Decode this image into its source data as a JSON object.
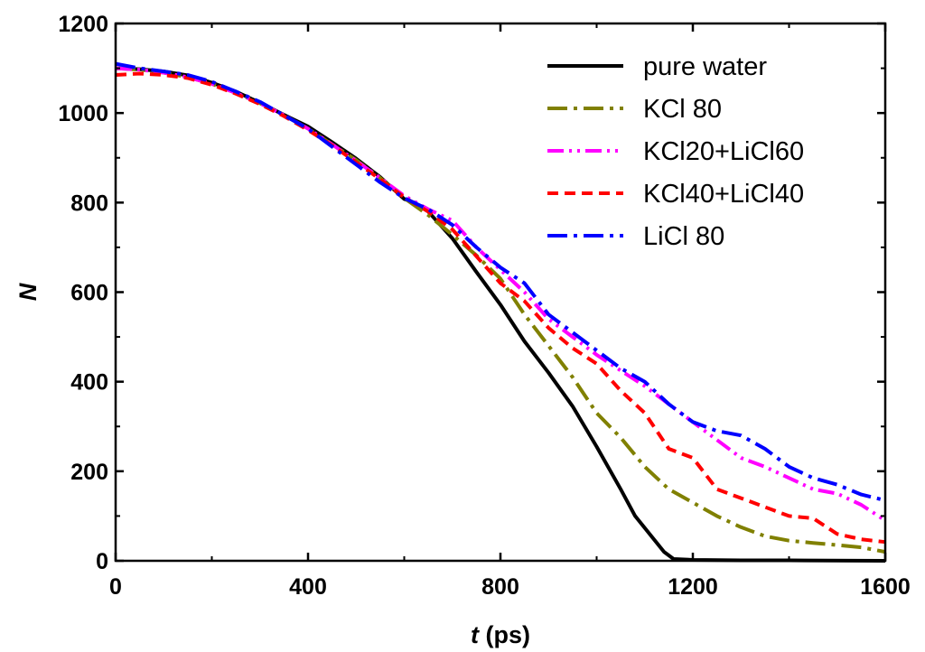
{
  "chart_data": {
    "type": "line",
    "title": "",
    "xlabel_italic": "t",
    "xlabel_unit": " (ps)",
    "ylabel": "N",
    "xlim": [
      0,
      1600
    ],
    "ylim": [
      0,
      1200
    ],
    "xticks": [
      0,
      400,
      800,
      1200,
      1600
    ],
    "yticks": [
      0,
      200,
      400,
      600,
      800,
      1000,
      1200
    ],
    "x_tick_labels": [
      "0",
      "400",
      "800",
      "1200",
      "1600"
    ],
    "y_tick_labels": [
      "0",
      "200",
      "400",
      "600",
      "800",
      "1000",
      "1200"
    ],
    "legend_position": "top-right",
    "series": [
      {
        "name": "pure  water",
        "color": "#000000",
        "dash": "solid",
        "points": [
          [
            0,
            1100
          ],
          [
            50,
            1098
          ],
          [
            100,
            1093
          ],
          [
            150,
            1084
          ],
          [
            200,
            1068
          ],
          [
            250,
            1048
          ],
          [
            300,
            1023
          ],
          [
            350,
            996
          ],
          [
            400,
            970
          ],
          [
            450,
            935
          ],
          [
            500,
            898
          ],
          [
            550,
            857
          ],
          [
            600,
            808
          ],
          [
            620,
            800
          ],
          [
            650,
            780
          ],
          [
            700,
            720
          ],
          [
            750,
            645
          ],
          [
            800,
            572
          ],
          [
            850,
            490
          ],
          [
            900,
            420
          ],
          [
            950,
            345
          ],
          [
            1000,
            255
          ],
          [
            1050,
            160
          ],
          [
            1080,
            100
          ],
          [
            1110,
            60
          ],
          [
            1140,
            20
          ],
          [
            1160,
            4
          ],
          [
            1200,
            2
          ],
          [
            1300,
            1
          ],
          [
            1400,
            1
          ],
          [
            1600,
            0
          ]
        ]
      },
      {
        "name": "KCl  80",
        "color": "#808000",
        "dash": "dashdot",
        "points": [
          [
            0,
            1100
          ],
          [
            50,
            1097
          ],
          [
            100,
            1090
          ],
          [
            150,
            1080
          ],
          [
            200,
            1065
          ],
          [
            250,
            1045
          ],
          [
            300,
            1022
          ],
          [
            350,
            995
          ],
          [
            400,
            965
          ],
          [
            450,
            930
          ],
          [
            500,
            895
          ],
          [
            550,
            855
          ],
          [
            600,
            810
          ],
          [
            650,
            772
          ],
          [
            700,
            728
          ],
          [
            750,
            682
          ],
          [
            800,
            630
          ],
          [
            850,
            550
          ],
          [
            900,
            480
          ],
          [
            950,
            410
          ],
          [
            1000,
            330
          ],
          [
            1050,
            275
          ],
          [
            1100,
            210
          ],
          [
            1150,
            160
          ],
          [
            1200,
            130
          ],
          [
            1250,
            100
          ],
          [
            1300,
            75
          ],
          [
            1350,
            55
          ],
          [
            1400,
            45
          ],
          [
            1450,
            40
          ],
          [
            1500,
            35
          ],
          [
            1550,
            30
          ],
          [
            1600,
            20
          ]
        ]
      },
      {
        "name": "KCl20+LiCl60",
        "color": "#ff00ff",
        "dash": "dashdotdot",
        "points": [
          [
            0,
            1100
          ],
          [
            50,
            1097
          ],
          [
            100,
            1090
          ],
          [
            150,
            1080
          ],
          [
            200,
            1065
          ],
          [
            250,
            1045
          ],
          [
            300,
            1022
          ],
          [
            350,
            995
          ],
          [
            400,
            965
          ],
          [
            450,
            930
          ],
          [
            500,
            893
          ],
          [
            550,
            855
          ],
          [
            600,
            815
          ],
          [
            650,
            785
          ],
          [
            700,
            760
          ],
          [
            750,
            700
          ],
          [
            800,
            650
          ],
          [
            850,
            600
          ],
          [
            900,
            540
          ],
          [
            950,
            500
          ],
          [
            1000,
            460
          ],
          [
            1050,
            425
          ],
          [
            1100,
            390
          ],
          [
            1150,
            350
          ],
          [
            1200,
            310
          ],
          [
            1250,
            270
          ],
          [
            1300,
            230
          ],
          [
            1350,
            210
          ],
          [
            1400,
            185
          ],
          [
            1450,
            160
          ],
          [
            1500,
            150
          ],
          [
            1550,
            125
          ],
          [
            1600,
            90
          ]
        ]
      },
      {
        "name": "KCl40+LiCl40",
        "color": "#ff0000",
        "dash": "dash",
        "points": [
          [
            0,
            1085
          ],
          [
            50,
            1088
          ],
          [
            100,
            1085
          ],
          [
            150,
            1078
          ],
          [
            200,
            1063
          ],
          [
            250,
            1043
          ],
          [
            300,
            1020
          ],
          [
            350,
            993
          ],
          [
            400,
            962
          ],
          [
            450,
            928
          ],
          [
            500,
            890
          ],
          [
            550,
            852
          ],
          [
            600,
            812
          ],
          [
            650,
            780
          ],
          [
            700,
            740
          ],
          [
            750,
            680
          ],
          [
            800,
            620
          ],
          [
            850,
            580
          ],
          [
            900,
            520
          ],
          [
            950,
            475
          ],
          [
            1000,
            440
          ],
          [
            1050,
            380
          ],
          [
            1100,
            330
          ],
          [
            1150,
            250
          ],
          [
            1200,
            230
          ],
          [
            1250,
            160
          ],
          [
            1300,
            140
          ],
          [
            1350,
            120
          ],
          [
            1400,
            100
          ],
          [
            1450,
            95
          ],
          [
            1500,
            60
          ],
          [
            1550,
            48
          ],
          [
            1600,
            42
          ]
        ]
      },
      {
        "name": "LiCl  80",
        "color": "#0000ff",
        "dash": "dashdot",
        "points": [
          [
            0,
            1110
          ],
          [
            50,
            1100
          ],
          [
            100,
            1093
          ],
          [
            150,
            1085
          ],
          [
            200,
            1070
          ],
          [
            250,
            1048
          ],
          [
            300,
            1025
          ],
          [
            350,
            995
          ],
          [
            400,
            965
          ],
          [
            450,
            925
          ],
          [
            500,
            885
          ],
          [
            550,
            845
          ],
          [
            600,
            810
          ],
          [
            650,
            785
          ],
          [
            700,
            750
          ],
          [
            750,
            700
          ],
          [
            800,
            655
          ],
          [
            850,
            620
          ],
          [
            900,
            550
          ],
          [
            950,
            510
          ],
          [
            1000,
            470
          ],
          [
            1050,
            430
          ],
          [
            1100,
            400
          ],
          [
            1150,
            350
          ],
          [
            1200,
            310
          ],
          [
            1250,
            290
          ],
          [
            1300,
            280
          ],
          [
            1350,
            250
          ],
          [
            1400,
            210
          ],
          [
            1450,
            185
          ],
          [
            1500,
            170
          ],
          [
            1550,
            148
          ],
          [
            1600,
            135
          ]
        ]
      }
    ]
  }
}
